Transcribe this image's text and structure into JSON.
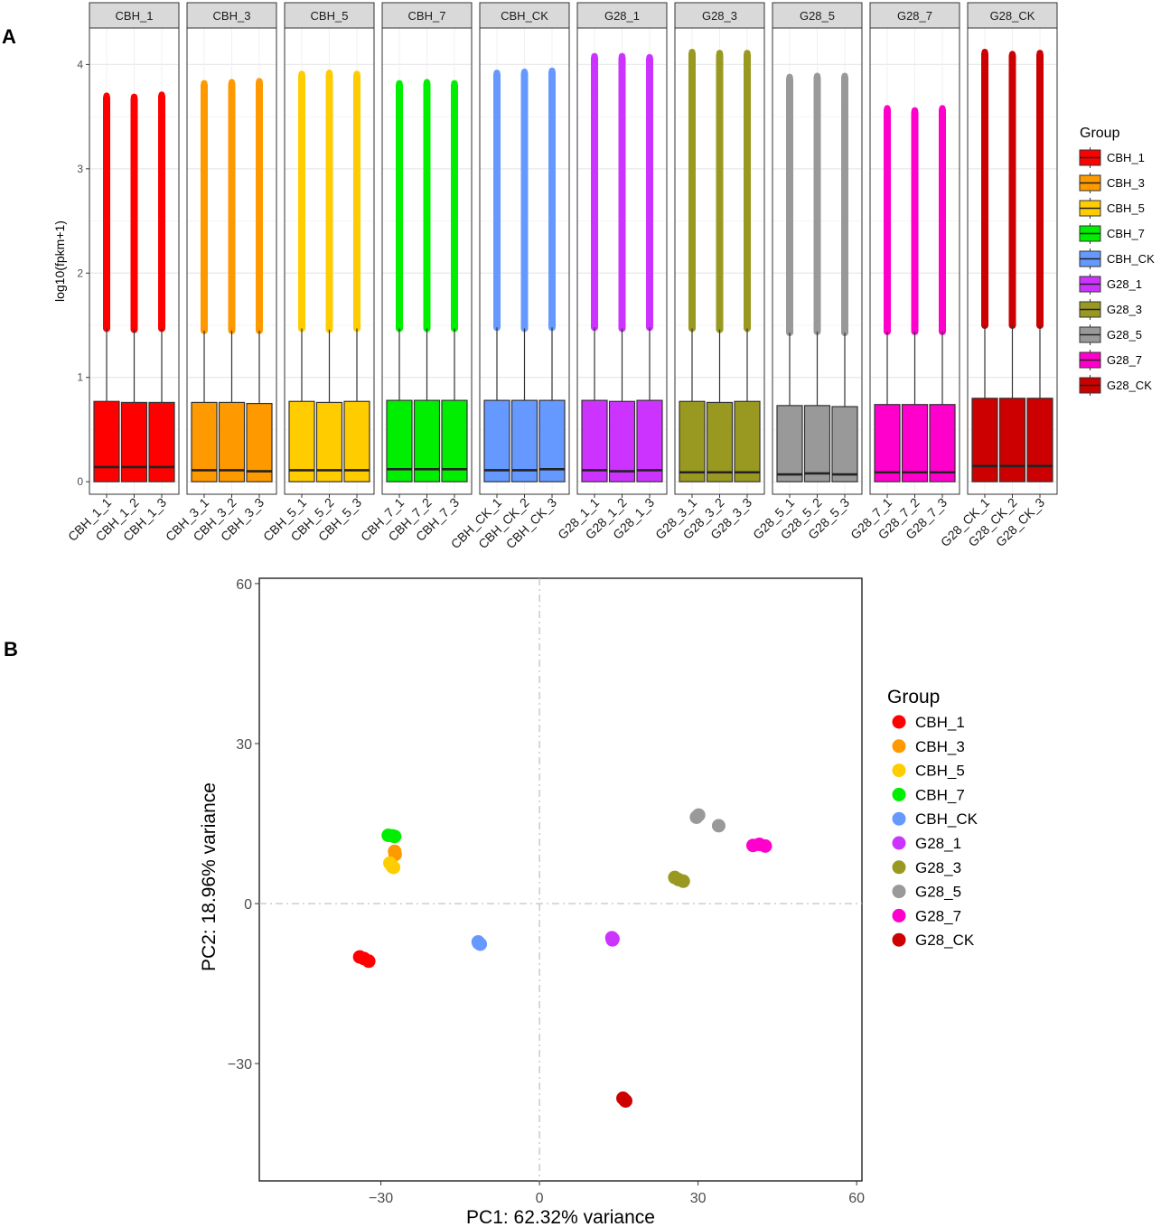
{
  "figure": {
    "panel_a_label": "A",
    "panel_b_label": "B"
  },
  "chart_data": [
    {
      "type": "box",
      "title": "",
      "xlabel": "",
      "ylabel": "log10(fpkm+1)",
      "ylim": [
        -0.12,
        4.35
      ],
      "yticks": [
        0,
        1,
        2,
        3,
        4
      ],
      "legend_title": "Group",
      "legend_position": "right",
      "facets": [
        {
          "name": "CBH_1",
          "color": "#ff0000",
          "samples": [
            {
              "label": "CBH_1_1",
              "q1": 0,
              "median": 0.14,
              "q3": 0.77,
              "whisker_low": 0,
              "whisker_high": 1.47,
              "outlier_max": 3.7
            },
            {
              "label": "CBH_1_2",
              "q1": 0,
              "median": 0.14,
              "q3": 0.76,
              "whisker_low": 0,
              "whisker_high": 1.46,
              "outlier_max": 3.69
            },
            {
              "label": "CBH_1_3",
              "q1": 0,
              "median": 0.14,
              "q3": 0.76,
              "whisker_low": 0,
              "whisker_high": 1.47,
              "outlier_max": 3.71
            }
          ]
        },
        {
          "name": "CBH_3",
          "color": "#ff9900",
          "samples": [
            {
              "label": "CBH_3_1",
              "q1": 0,
              "median": 0.11,
              "q3": 0.76,
              "whisker_low": 0,
              "whisker_high": 1.45,
              "outlier_max": 3.82
            },
            {
              "label": "CBH_3_2",
              "q1": 0,
              "median": 0.11,
              "q3": 0.76,
              "whisker_low": 0,
              "whisker_high": 1.45,
              "outlier_max": 3.83
            },
            {
              "label": "CBH_3_3",
              "q1": 0,
              "median": 0.1,
              "q3": 0.75,
              "whisker_low": 0,
              "whisker_high": 1.45,
              "outlier_max": 3.84
            }
          ]
        },
        {
          "name": "CBH_5",
          "color": "#ffcc00",
          "samples": [
            {
              "label": "CBH_5_1",
              "q1": 0,
              "median": 0.11,
              "q3": 0.77,
              "whisker_low": 0,
              "whisker_high": 1.47,
              "outlier_max": 3.91
            },
            {
              "label": "CBH_5_2",
              "q1": 0,
              "median": 0.11,
              "q3": 0.76,
              "whisker_low": 0,
              "whisker_high": 1.46,
              "outlier_max": 3.92
            },
            {
              "label": "CBH_5_3",
              "q1": 0,
              "median": 0.11,
              "q3": 0.77,
              "whisker_low": 0,
              "whisker_high": 1.47,
              "outlier_max": 3.91
            }
          ]
        },
        {
          "name": "CBH_7",
          "color": "#00ee00",
          "samples": [
            {
              "label": "CBH_7_1",
              "q1": 0,
              "median": 0.12,
              "q3": 0.78,
              "whisker_low": 0,
              "whisker_high": 1.47,
              "outlier_max": 3.82
            },
            {
              "label": "CBH_7_2",
              "q1": 0,
              "median": 0.12,
              "q3": 0.78,
              "whisker_low": 0,
              "whisker_high": 1.47,
              "outlier_max": 3.83
            },
            {
              "label": "CBH_7_3",
              "q1": 0,
              "median": 0.12,
              "q3": 0.78,
              "whisker_low": 0,
              "whisker_high": 1.47,
              "outlier_max": 3.82
            }
          ]
        },
        {
          "name": "CBH_CK",
          "color": "#6699ff",
          "samples": [
            {
              "label": "CBH_CK_1",
              "q1": 0,
              "median": 0.11,
              "q3": 0.78,
              "whisker_low": 0,
              "whisker_high": 1.48,
              "outlier_max": 3.92
            },
            {
              "label": "CBH_CK_2",
              "q1": 0,
              "median": 0.11,
              "q3": 0.78,
              "whisker_low": 0,
              "whisker_high": 1.47,
              "outlier_max": 3.93
            },
            {
              "label": "CBH_CK_3",
              "q1": 0,
              "median": 0.12,
              "q3": 0.78,
              "whisker_low": 0,
              "whisker_high": 1.48,
              "outlier_max": 3.94
            }
          ]
        },
        {
          "name": "G28_1",
          "color": "#cc33ff",
          "samples": [
            {
              "label": "G28_1_1",
              "q1": 0,
              "median": 0.11,
              "q3": 0.78,
              "whisker_low": 0,
              "whisker_high": 1.48,
              "outlier_max": 4.08
            },
            {
              "label": "G28_1_2",
              "q1": 0,
              "median": 0.1,
              "q3": 0.77,
              "whisker_low": 0,
              "whisker_high": 1.47,
              "outlier_max": 4.08
            },
            {
              "label": "G28_1_3",
              "q1": 0,
              "median": 0.11,
              "q3": 0.78,
              "whisker_low": 0,
              "whisker_high": 1.48,
              "outlier_max": 4.07
            }
          ]
        },
        {
          "name": "G28_3",
          "color": "#999922",
          "samples": [
            {
              "label": "G28_3_1",
              "q1": 0,
              "median": 0.09,
              "q3": 0.77,
              "whisker_low": 0,
              "whisker_high": 1.47,
              "outlier_max": 4.12
            },
            {
              "label": "G28_3_2",
              "q1": 0,
              "median": 0.09,
              "q3": 0.76,
              "whisker_low": 0,
              "whisker_high": 1.46,
              "outlier_max": 4.11
            },
            {
              "label": "G28_3_3",
              "q1": 0,
              "median": 0.09,
              "q3": 0.77,
              "whisker_low": 0,
              "whisker_high": 1.47,
              "outlier_max": 4.11
            }
          ]
        },
        {
          "name": "G28_5",
          "color": "#999999",
          "samples": [
            {
              "label": "G28_5_1",
              "q1": 0,
              "median": 0.07,
              "q3": 0.73,
              "whisker_low": 0,
              "whisker_high": 1.43,
              "outlier_max": 3.88
            },
            {
              "label": "G28_5_2",
              "q1": 0,
              "median": 0.08,
              "q3": 0.73,
              "whisker_low": 0,
              "whisker_high": 1.44,
              "outlier_max": 3.89
            },
            {
              "label": "G28_5_3",
              "q1": 0,
              "median": 0.07,
              "q3": 0.72,
              "whisker_low": 0,
              "whisker_high": 1.43,
              "outlier_max": 3.89
            }
          ]
        },
        {
          "name": "G28_7",
          "color": "#ff00cc",
          "samples": [
            {
              "label": "G28_7_1",
              "q1": 0,
              "median": 0.09,
              "q3": 0.74,
              "whisker_low": 0,
              "whisker_high": 1.44,
              "outlier_max": 3.58
            },
            {
              "label": "G28_7_2",
              "q1": 0,
              "median": 0.09,
              "q3": 0.74,
              "whisker_low": 0,
              "whisker_high": 1.44,
              "outlier_max": 3.56
            },
            {
              "label": "G28_7_3",
              "q1": 0,
              "median": 0.09,
              "q3": 0.74,
              "whisker_low": 0,
              "whisker_high": 1.44,
              "outlier_max": 3.58
            }
          ]
        },
        {
          "name": "G28_CK",
          "color": "#cc0000",
          "samples": [
            {
              "label": "G28_CK_1",
              "q1": 0,
              "median": 0.15,
              "q3": 0.8,
              "whisker_low": 0,
              "whisker_high": 1.5,
              "outlier_max": 4.12
            },
            {
              "label": "G28_CK_2",
              "q1": 0,
              "median": 0.15,
              "q3": 0.8,
              "whisker_low": 0,
              "whisker_high": 1.5,
              "outlier_max": 4.1
            },
            {
              "label": "G28_CK_3",
              "q1": 0,
              "median": 0.15,
              "q3": 0.8,
              "whisker_low": 0,
              "whisker_high": 1.5,
              "outlier_max": 4.11
            }
          ]
        }
      ]
    },
    {
      "type": "scatter",
      "title": "",
      "xlabel": "PC1: 62.32% variance",
      "ylabel": "PC2: 18.96% variance",
      "xlim": [
        -53,
        61
      ],
      "ylim": [
        -52,
        61
      ],
      "xticks": [
        -30,
        0,
        30,
        60
      ],
      "yticks": [
        -30,
        0,
        30,
        60
      ],
      "reference_lines": {
        "x": 0,
        "y": 0
      },
      "legend_title": "Group",
      "legend_position": "right",
      "series": [
        {
          "name": "CBH_1",
          "color": "#ff0000",
          "points": [
            [
              -34,
              -10
            ],
            [
              -33.2,
              -10.3
            ],
            [
              -32.3,
              -10.8
            ]
          ]
        },
        {
          "name": "CBH_3",
          "color": "#ff9900",
          "points": [
            [
              -27.4,
              9.8
            ],
            [
              -27.3,
              9.2
            ]
          ]
        },
        {
          "name": "CBH_5",
          "color": "#ffcc00",
          "points": [
            [
              -28.3,
              7.6
            ],
            [
              -27.8,
              6.9
            ],
            [
              -27.6,
              6.8
            ]
          ]
        },
        {
          "name": "CBH_7",
          "color": "#00ee00",
          "points": [
            [
              -28.6,
              12.8
            ],
            [
              -27.8,
              12.7
            ],
            [
              -27.4,
              12.6
            ]
          ]
        },
        {
          "name": "CBH_CK",
          "color": "#6699ff",
          "points": [
            [
              -11.6,
              -7.2
            ],
            [
              -11.2,
              -7.6
            ],
            [
              -11.5,
              -7.4
            ]
          ]
        },
        {
          "name": "G28_1",
          "color": "#cc33ff",
          "points": [
            [
              13.8,
              -6.8
            ],
            [
              13.7,
              -6.4
            ],
            [
              13.9,
              -6.6
            ]
          ]
        },
        {
          "name": "G28_3",
          "color": "#999922",
          "points": [
            [
              25.6,
              4.9
            ],
            [
              26.3,
              4.5
            ],
            [
              27.2,
              4.2
            ]
          ]
        },
        {
          "name": "G28_5",
          "color": "#999999",
          "points": [
            [
              29.7,
              16.2
            ],
            [
              30.1,
              16.6
            ],
            [
              33.9,
              14.6
            ]
          ]
        },
        {
          "name": "G28_7",
          "color": "#ff00cc",
          "points": [
            [
              40.4,
              10.9
            ],
            [
              41.6,
              11.1
            ],
            [
              42.7,
              10.8
            ]
          ]
        },
        {
          "name": "G28_CK",
          "color": "#cc0000",
          "points": [
            [
              15.8,
              -36.5
            ],
            [
              16.3,
              -37
            ],
            [
              16.1,
              -36.8
            ]
          ]
        }
      ]
    }
  ]
}
